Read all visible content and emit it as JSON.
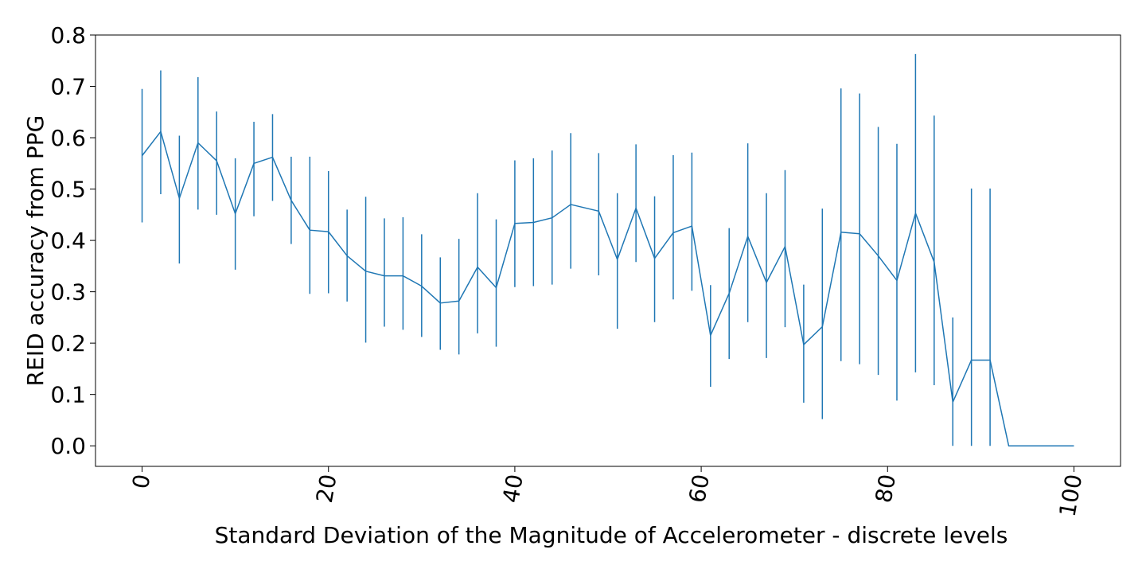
{
  "chart_data": {
    "type": "line",
    "title": "",
    "xlabel": "Standard Deviation of the Magnitude of Accelerometer - discrete levels",
    "ylabel": "REID accuracy from PPG",
    "xlim": [
      -5,
      105
    ],
    "ylim": [
      -0.04,
      0.8
    ],
    "x_ticks": [
      0,
      20,
      40,
      60,
      80,
      100
    ],
    "y_ticks": [
      0.0,
      0.1,
      0.2,
      0.3,
      0.4,
      0.5,
      0.6,
      0.7,
      0.8
    ],
    "x_tick_rotation": -80,
    "grid": false,
    "legend": "none",
    "color": "#1f77b4",
    "series": [
      {
        "x": [
          0,
          2,
          4,
          6,
          8,
          10,
          12,
          14,
          16,
          18,
          20,
          22,
          24,
          26,
          28,
          30,
          32,
          34,
          36,
          38,
          40,
          42,
          44,
          46,
          49,
          51,
          53,
          55,
          57,
          59,
          61,
          63,
          65,
          67,
          69,
          71,
          73,
          75,
          77,
          79,
          81,
          83,
          85,
          87,
          89,
          91,
          93,
          95,
          97,
          100
        ],
        "y": [
          0.565,
          0.612,
          0.482,
          0.59,
          0.555,
          0.452,
          0.55,
          0.562,
          0.478,
          0.42,
          0.417,
          0.37,
          0.34,
          0.331,
          0.331,
          0.311,
          0.278,
          0.282,
          0.348,
          0.308,
          0.433,
          0.435,
          0.444,
          0.47,
          0.457,
          0.363,
          0.463,
          0.365,
          0.415,
          0.428,
          0.215,
          0.297,
          0.408,
          0.318,
          0.388,
          0.197,
          0.232,
          0.416,
          0.413,
          0.37,
          0.322,
          0.453,
          0.358,
          0.085,
          0.167,
          0.167,
          0.0,
          0.0,
          0.0,
          0.0
        ],
        "yerr_low": [
          0.435,
          0.49,
          0.355,
          0.46,
          0.45,
          0.343,
          0.447,
          0.477,
          0.393,
          0.296,
          0.297,
          0.281,
          0.201,
          0.232,
          0.226,
          0.212,
          0.187,
          0.178,
          0.219,
          0.193,
          0.309,
          0.311,
          0.314,
          0.345,
          0.332,
          0.228,
          0.358,
          0.241,
          0.285,
          0.302,
          0.115,
          0.169,
          0.241,
          0.171,
          0.231,
          0.084,
          0.052,
          0.165,
          0.159,
          0.138,
          0.088,
          0.143,
          0.118,
          0.0,
          0.0,
          0.0,
          0.0,
          0.0,
          0.0,
          0.0
        ],
        "yerr_high": [
          0.695,
          0.731,
          0.604,
          0.718,
          0.651,
          0.56,
          0.631,
          0.646,
          0.563,
          0.563,
          0.535,
          0.46,
          0.485,
          0.443,
          0.445,
          0.412,
          0.367,
          0.403,
          0.492,
          0.441,
          0.556,
          0.56,
          0.575,
          0.609,
          0.57,
          0.492,
          0.587,
          0.486,
          0.566,
          0.571,
          0.313,
          0.424,
          0.589,
          0.492,
          0.537,
          0.314,
          0.462,
          0.696,
          0.686,
          0.621,
          0.588,
          0.763,
          0.643,
          0.25,
          0.501,
          0.501,
          0.0,
          0.0,
          0.0,
          0.0
        ]
      }
    ]
  }
}
